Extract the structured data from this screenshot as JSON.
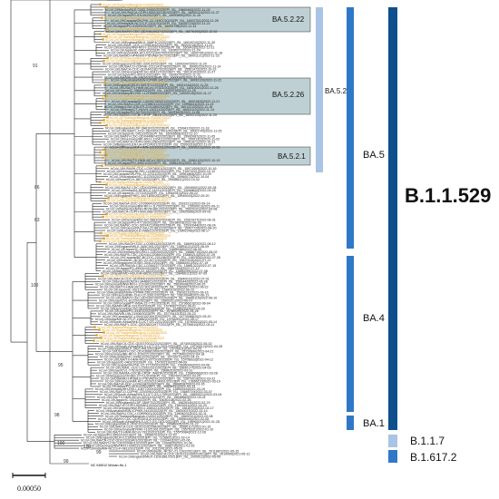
{
  "colors": {
    "branch": "#222222",
    "leaf_default": "#222222",
    "leaf_highlight": "#e0a020",
    "box_fill": "#88aaae",
    "bar_light": "#a9c4e4",
    "bar_mid": "#2f78c8",
    "bar_dark": "#0f4f8e"
  },
  "bootstrap_values": [
    "91",
    "86",
    "83",
    "100",
    "95",
    "98",
    "100",
    "100",
    "99",
    "99"
  ],
  "subclade_boxes": [
    {
      "label": "BA.5.2.22"
    },
    {
      "label": "BA.5.2.26"
    },
    {
      "label": "BA.5.2.1"
    }
  ],
  "lineage_bars": [
    {
      "label": "BA.5.2"
    },
    {
      "label": "BA.5"
    },
    {
      "label": "BA.4"
    },
    {
      "label": "BA.1"
    },
    {
      "label": "B.1.1.529"
    },
    {
      "label": "B.1.1.7"
    },
    {
      "label": "B.1.617.2"
    }
  ],
  "scale_bar": {
    "label": "0.00050"
  },
  "root_leaf": {
    "label": "NC 045512 Wuhan-Hu-1"
  },
  "leaf_labels": [
    {
      "text": "hCoV-19/Thailand/Bangkok-CU0097/2022",
      "hl": true
    },
    {
      "text": "hCoV-19/Thailand/Bangkok-CU0098/2022",
      "hl": true
    },
    {
      "text": "hCoV-19/Mexico/NLE-CIAD-29450/2022|EPI_ISL_15669460|2022-11-03",
      "hl": false
    },
    {
      "text": "hCoV-19/USA/CA-CDPH-500130218/2022|EPI_ISL_16000115|2022-11-27",
      "hl": false
    },
    {
      "text": "hCoV-19/Japan/PG-51140/2022|EPI_ISL_16093840|2022-11-15",
      "hl": false
    },
    {
      "text": "hCoV-19/Thailand/Bangkok-CU0106/2022",
      "hl": true
    },
    {
      "text": "hCoV-19/Canada/ON-PHL-22-24907/2022|EPI_ISL_16007321|2022-11-28",
      "hl": false
    },
    {
      "text": "hCoV-19/India/MH-NCCS-P-2201/2022|EPI_ISL_16093715|2022-11-22",
      "hl": false
    },
    {
      "text": "hCoV-19/Japan/PG-51093/2022|EPI_ISL_16093796|2022-11-14",
      "hl": false
    },
    {
      "text": "hCoV-19/Thailand/Bangkok-CU0112/2022",
      "hl": true
    },
    {
      "text": "hCoV-19/USA/NY-CDC-QDX46190374/2022|EPI_ISL_16076400|2022-12-02",
      "hl": false
    },
    {
      "text": "hCoV-19/Thailand/Bangkok-CU0085/2022",
      "hl": true
    },
    {
      "text": "hCoV-19/Thailand/Bangkok-CU0091/2022",
      "hl": true
    },
    {
      "text": "hCoV-19/Thailand/Bangkok-CU0093/2022",
      "hl": true
    },
    {
      "text": "hCoV-19/England/MILK-3A8F4C2/2022|EPI_ISL_16019210|2022-11-30",
      "hl": false
    },
    {
      "text": "hCoV-19/USA/IL-CDC-LC0981642/2022|EPI_ISL_16003218|2022-11-22",
      "hl": false
    },
    {
      "text": "hCoV-19/Germany/NW-RKI-I-1231027/2022|EPI_ISL_16094182|2022-11-21",
      "hl": false
    },
    {
      "text": "hCoV-19/Japan/IC-0952/2022|EPI_ISL_16093712|2022-11-24",
      "hl": false
    },
    {
      "text": "hCoV-19/France/ARA-HCL022123417001/2022|EPI_ISL_16007451|2022-11-18",
      "hl": false
    },
    {
      "text": "hCoV-19/USA/MD-HP40900-PIDVAEF2K7/2022|EPI_ISL_16001121|2022-11-23",
      "hl": false
    },
    {
      "text": "hCoV-19/Thailand/Bangkok-CU0109/2022",
      "hl": true
    },
    {
      "text": "hCoV-19/Thailand/Bangkok-CU0111/2022",
      "hl": true
    },
    {
      "text": "hCoV-19/Singapore/ODSEI-33019/2022|EPI_ISL_16003347|2022-11-20",
      "hl": false
    },
    {
      "text": "hCoV-19/USA/CO-CDPHE-2211141278/2022|EPI_ISL_16060220|2022-11-14",
      "hl": false
    },
    {
      "text": "hCoV-19/USA/CA-CDC-QDX44118273/2022|EPI_ISL_15561472|2022-10-22",
      "hl": false
    },
    {
      "text": "hCoV-19/Denmark/DCGC-604117/2022|EPI_ISL_16019102|2022-11-27",
      "hl": false
    },
    {
      "text": "hCoV-19/Japan/PG-50911/2022|EPI_ISL_16093701|2022-11-12",
      "hl": false
    },
    {
      "text": "hCoV-19/USA/WA-UW-24816/2022|EPI_ISL_16000931|2022-11-24",
      "hl": false
    },
    {
      "text": "hCoV-19/Australia/NSW-ICPMR-34211/2022|EPI_ISL_16093120|2022-11-22",
      "hl": false
    },
    {
      "text": "hCoV-19/Thailand/Bangkok-CU0089/2022",
      "hl": true
    },
    {
      "text": "hCoV-19/England/QEUH-3A97E11/2022|EPI_ISL_16001244|2022-11-29",
      "hl": false
    },
    {
      "text": "hCoV-19/USA/TX-HMH-MCoV-97302/2022|EPI_ISL_16010021|2022-11-26",
      "hl": false
    },
    {
      "text": "hCoV-19/Japan/IC-0968/2022|EPI_ISL_16093755|2022-11-25",
      "hl": false
    },
    {
      "text": "hCoV-19/Germany/BY-RKI-I-1219980/2022|EPI_ISL_16009128|2022-11-17",
      "hl": false
    },
    {
      "text": "hCoV-19/Thailand/Bangkok-CU0095/2022",
      "hl": true
    },
    {
      "text": "hCoV-19/Thailand/Bangkok-CU0103/2022",
      "hl": true
    },
    {
      "text": "hCoV-19/Canada/QC-L00492190001/2022|EPI_ISL_16001820|2022-11-21",
      "hl": false
    },
    {
      "text": "hCoV-19/USA/NJ-CDC-LC0980122/2022|EPI_ISL_15998411|2022-11-19",
      "hl": false
    },
    {
      "text": "hCoV-19/Italy/LOM-IZSLER-2231180/2022|EPI_ISL_16012212|2022-11-16",
      "hl": false
    },
    {
      "text": "hCoV-19/Spain/CT-HUVH-130211/2022|EPI_ISL_16003112|2022-11-14",
      "hl": false
    },
    {
      "text": "hCoV-19/Japan/PG-50700/2022|EPI_ISL_16093604|2022-11-08",
      "hl": false
    },
    {
      "text": "hCoV-19/USA/MA-CDCBI-CRSP_AB33L/2022|EPI_ISL_16002115|2022-11-20",
      "hl": false
    },
    {
      "text": "hCoV-19/Thailand/Bangkok-CU0087/2022",
      "hl": true
    },
    {
      "text": "hCoV-19/Thailand/Bangkok-CU0090/2022",
      "hl": true
    },
    {
      "text": "hCoV-19/Thailand/Bangkok-CU0100/2022",
      "hl": true
    },
    {
      "text": "hCoV-19/Thailand/Bangkok-CU0104/2022",
      "hl": true
    },
    {
      "text": "hCoV-19/England/ALDP-3A81F02/2022|EPI_ISL_15994120|2022-11-18",
      "hl": false
    },
    {
      "text": "hCoV-19/USA/FL-CDC-QDX45117001/2022|EPI_ISL_16001742|2022-11-25",
      "hl": false
    },
    {
      "text": "hCoV-19/Japan/IC-0911/2022|EPI_ISL_16093668|2022-11-10",
      "hl": false
    },
    {
      "text": "hCoV-19/USA/NY-CDC-QDX44987412/2022|EPI_ISL_15992087|2022-11-05",
      "hl": false
    },
    {
      "text": "hCoV-19/Germany/HE-RKI-I-1204112/2022|EPI_ISL_15991322|2022-11-02",
      "hl": false
    },
    {
      "text": "hCoV-19/USA/CA-CDPH-500120833/2022|EPI_ISL_15991871|2022-10-31",
      "hl": false
    },
    {
      "text": "hCoV-19/Belgium/UZA-UA-87224921/2022|EPI_ISL_15993318|2022-11-07",
      "hl": false
    },
    {
      "text": "hCoV-19/France/IDF-HMN-122100311/2022|EPI_ISL_15992211|2022-10-28",
      "hl": false
    },
    {
      "text": "hCoV-19/Thailand/Bangkok-CU0082/2022",
      "hl": true
    },
    {
      "text": "hCoV-19/Thailand/Bangkok-CU0083/2022",
      "hl": true
    },
    {
      "text": "hCoV-19/Thailand/Bangkok-CU0084/2022",
      "hl": true
    },
    {
      "text": "hCoV-19/Thailand/Bangkok-CU0086/2022",
      "hl": true
    },
    {
      "text": "hCoV-19/USA/TX-HMH-MCoV-95211/2022|EPI_ISL_15981120|2022-10-19",
      "hl": false
    },
    {
      "text": "hCoV-19/Japan/PG-49921/2022|EPI_ISL_15982341|2022-10-20",
      "hl": false
    },
    {
      "text": "hCoV-19/Thailand/Bangkok-CU0079/2022",
      "hl": true
    },
    {
      "text": "hCoV-19/USA/MI-CDC-LC0978001/2022|EPI_ISL_15971009|2022-10-16",
      "hl": false
    },
    {
      "text": "hCoV-19/Germany/NI-RKI-I-1188332/2022|EPI_ISL_15970221|2022-10-12",
      "hl": false
    },
    {
      "text": "hCoV-19/Canada/ON-PHL-22-22311/2022|EPI_ISL_15961884|2022-10-09",
      "hl": false
    },
    {
      "text": "hCoV-19/Australia/VIC-112203/2022|EPI_ISL_15960072|2022-10-04",
      "hl": false
    },
    {
      "text": "hCoV-19/Israel/CVL-88712/2022|EPI_ISL_15958811|2022-10-02",
      "hl": false
    },
    {
      "text": "hCoV-19/Thailand/Bangkok-CU0075/2022",
      "hl": true
    },
    {
      "text": "hCoV-19/Thailand/Bangkok-CU0077/2022",
      "hl": true
    },
    {
      "text": "hCoV-19/USA/AZ-CDC-QDX43399102/2022|EPI_ISL_15949001|2022-09-28",
      "hl": false
    },
    {
      "text": "hCoV-19/India/KA-NCBS-Z-14221/2022|EPI_ISL_15948820|2022-09-25",
      "hl": false
    },
    {
      "text": "hCoV-19/Japan/IC-0772/2022|EPI_ISL_15944310|2022-09-22",
      "hl": false
    },
    {
      "text": "hCoV-19/England/PHEC-3A71B30/2022|EPI_ISL_15940043|2022-09-20",
      "hl": false
    },
    {
      "text": "hCoV-19/Thailand/Bangkok-CU0071/2022",
      "hl": true
    },
    {
      "text": "hCoV-19/Thailand/Bangkok-CU0073/2022",
      "hl": true
    },
    {
      "text": "hCoV-19/USA/GA-CDC-LC0966410/2022|EPI_ISL_15932211|2022-09-14",
      "hl": false
    },
    {
      "text": "hCoV-19/Germany/BW-RKI-I-1170022/2022|EPI_ISL_15930013|2022-09-11",
      "hl": false
    },
    {
      "text": "hCoV-19/Netherlands/NH-RIVM-88120/2022|EPI_ISL_15929101|2022-09-08",
      "hl": false
    },
    {
      "text": "hCoV-19/USA/CA-CDPH-500108873/2022|EPI_ISL_15925566|2022-09-05",
      "hl": false
    },
    {
      "text": "hCoV-19/Thailand/Bangkok-CU0068/2022",
      "hl": true
    },
    {
      "text": "hCoV-19/Thailand/Bangkok-CU0069/2022",
      "hl": true
    },
    {
      "text": "hCoV-19/Denmark/DCGC-588102/2022|EPI_ISL_15921877|2022-08-31",
      "hl": false
    },
    {
      "text": "hCoV-19/Japan/PG-47710/2022|EPI_ISL_15918003|2022-08-28",
      "hl": false
    },
    {
      "text": "hCoV-19/USA/NC-CDC-QDX42110982/2022|EPI_ISL_15910044|2022-08-24",
      "hl": false
    },
    {
      "text": "hCoV-19/France/PAC-IHU-22-8812/2022|EPI_ISL_15907720|2022-08-20",
      "hl": false
    },
    {
      "text": "hCoV-19/Australia/QLD-0988122/2022|EPI_ISL_15902248|2022-08-17",
      "hl": false
    },
    {
      "text": "hCoV-19/Thailand/Bangkok-CU0064/2022",
      "hl": true
    },
    {
      "text": "hCoV-19/Thailand/Bangkok-CU0065/2022",
      "hl": true
    },
    {
      "text": "hCoV-19/Thailand/Bangkok-CU0066/2022",
      "hl": true
    },
    {
      "text": "hCoV-19/Thailand/Bangkok-CU0067/2022",
      "hl": true
    },
    {
      "text": "hCoV-19/USA/OH-CDC-LC0951120/2022|EPI_ISL_15899310|2022-08-12",
      "hl": false
    },
    {
      "text": "hCoV-19/England/MILK-3A5C901/2022|EPI_ISL_15894121|2022-08-09",
      "hl": false
    },
    {
      "text": "hCoV-19/Japan/IC-0644/2022|EPI_ISL_15890088|2022-08-05",
      "hl": false
    },
    {
      "text": "hCoV-19/Germany/SN-RKI-I-1151002/2022|EPI_ISL_15886710|2022-08-02",
      "hl": false
    },
    {
      "text": "hCoV-19/USA/PA-CDC-QDX41122089/2022|EPI_ISL_15880214|2022-07-29",
      "hl": false
    },
    {
      "text": "hCoV-19/Canada/BC-BCCDC-221198/2022|EPI_ISL_15876032|2022-07-26",
      "hl": false
    },
    {
      "text": "hCoV-19/India/DL-NCDC-22-4471/2022|EPI_ISL_15870119|2022-07-22",
      "hl": false
    },
    {
      "text": "hCoV-19/Singapore/ODSEI-30412/2022|EPI_ISL_15866001|2022-07-19",
      "hl": false
    },
    {
      "text": "hCoV-19/USA/VA-CDC-LC0942277/2022|EPI_ISL_15861322|2022-07-15",
      "hl": false
    },
    {
      "text": "hCoV-19/Japan/PG-45520/2022|EPI_ISL_15857444|2022-07-12",
      "hl": false
    },
    {
      "text": "hCoV-19/Italy/VEN-IZSVe-22-1822/2022|EPI_ISL_15850099|2022-07-08",
      "hl": false
    },
    {
      "text": "hCoV-19/Spain/MD-HGUGM-88201/2022|EPI_ISL_15846611|2022-07-05",
      "hl": false
    },
    {
      "text": "hCoV-19/Thailand/Bangkok-CU0061/2022",
      "hl": true
    },
    {
      "text": "hCoV-19/USA/CA-CDC-QDX40019320/2022|EPI_ISL_15840012|2022-07-01",
      "hl": false
    },
    {
      "text": "hCoV-19/England/QEUH-3A4B811/2022|EPI_ISL_15834420|2022-06-28",
      "hl": false
    },
    {
      "text": "hCoV-19/Germany/NW-RKI-I-1131901/2022|EPI_ISL_15830008|2022-06-25",
      "hl": false
    },
    {
      "text": "hCoV-19/USA/TX-HMH-MCoV-90114/2022|EPI_ISL_15826677|2022-06-22",
      "hl": false
    },
    {
      "text": "hCoV-19/Japan/IC-0521/2022|EPI_ISL_15820102|2022-06-19",
      "hl": false
    },
    {
      "text": "hCoV-19/Australia/NSW-ICPMR-29812/2022|EPI_ISL_15816231|2022-06-16",
      "hl": false
    },
    {
      "text": "hCoV-19/France/BRE-CHU-22-3301/2022|EPI_ISL_15810044|2022-06-13",
      "hl": false
    },
    {
      "text": "hCoV-19/USA/NY-CDC-QDX39210022/2022|EPI_ISL_15806119|2022-06-10",
      "hl": false
    },
    {
      "text": "hCoV-19/Israel/CVL-81220/2022|EPI_ISL_15800321|2022-06-07",
      "hl": false
    },
    {
      "text": "hCoV-19/Portugal/PT-INSA-22-7711/2022|EPI_ISL_15796610|2022-06-04",
      "hl": false
    },
    {
      "text": "hCoV-19/USA/MN-MDH-33120/2022|EPI_ISL_15790877|2022-06-01",
      "hl": false
    },
    {
      "text": "hCoV-19/Denmark/DCGC-561002/2022|EPI_ISL_15786220|2022-05-29",
      "hl": false
    },
    {
      "text": "hCoV-19/Japan/PG-43301/2022|EPI_ISL_15780099|2022-05-26",
      "hl": false
    },
    {
      "text": "hCoV-19/USA/WA-UW-21908/2022|EPI_ISL_15776412|2022-05-23",
      "hl": false
    },
    {
      "text": "hCoV-19/Canada/QC-L00441021001/2022|EPI_ISL_15770088|2022-05-20",
      "hl": false
    },
    {
      "text": "hCoV-19/India/MH-NCCS-P-1988/2022|EPI_ISL_15766301|2022-05-17",
      "hl": false
    },
    {
      "text": "hCoV-19/South Africa/NHLS-UCT-GS-2211/2022|EPI_ISL_15760022|2022-05-14",
      "hl": false
    },
    {
      "text": "hCoV-19/USA/FL-CDC-QDX38211977/2022|EPI_ISL_15756610|2022-05-11",
      "hl": false
    },
    {
      "text": "hCoV-19/Thailand/Bangkok-CU0041/2022",
      "hl": true
    },
    {
      "text": "hCoV-19/Thailand/Bangkok-CU0043/2022",
      "hl": true
    },
    {
      "text": "hCoV-19/Thailand/Bangkok-CU0045/2022",
      "hl": true
    },
    {
      "text": "hCoV-19/Thailand/Bangkok-CU0046/2022",
      "hl": true
    },
    {
      "text": "hCoV-19/Thailand/Bangkok-CU0048/2022",
      "hl": true
    },
    {
      "text": "hCoV-19/Thailand/Bangkok-CU0050/2022",
      "hl": true
    },
    {
      "text": "hCoV-19/USA/CA-CDC-QDX37001122/2022|EPI_ISL_15740033|2022-05-02",
      "hl": false
    },
    {
      "text": "hCoV-19/South Africa/NHLS-UCT-GS-2011/2022|EPI_ISL_15730012|2022-04-28",
      "hl": false
    },
    {
      "text": "hCoV-19/England/MILK-3A2C441/2022|EPI_ISL_15726611|2022-04-25",
      "hl": false
    },
    {
      "text": "hCoV-19/USA/NY-CDC-QDX36881009/2022|EPI_ISL_15720890|2022-04-21",
      "hl": false
    },
    {
      "text": "hCoV-19/Germany/BE-RKI-I-1100221/2022|EPI_ISL_15716402|2022-04-18",
      "hl": false
    },
    {
      "text": "hCoV-19/Australia/VIC-099812/2022|EPI_ISL_15710071|2022-04-15",
      "hl": false
    },
    {
      "text": "hCoV-19/USA/TX-HMH-MCoV-87720/2022|EPI_ISL_15706633|2022-04-12",
      "hl": false
    },
    {
      "text": "hCoV-19/Japan/IC-0402/2022|EPI_ISL_15700219|2022-04-09",
      "hl": false
    },
    {
      "text": "hCoV-19/Canada/ON-PHL-22-17720/2022|EPI_ISL_15696044|2022-04-06",
      "hl": false
    },
    {
      "text": "hCoV-19/USA/IL-CDC-LC0922331/2022|EPI_ISL_15690177|2022-04-03",
      "hl": false
    },
    {
      "text": "hCoV-19/Israel/CVL-77610/2022|EPI_ISL_15686310|2022-03-31",
      "hl": false
    },
    {
      "text": "hCoV-19/USA/MA-CDCBI-CRSP_AA91K/2022|EPI_ISL_15680066|2022-03-28",
      "hl": false
    },
    {
      "text": "hCoV-19/Singapore/ODSEI-27711/2022|EPI_ISL_15676221|2022-03-25",
      "hl": false
    },
    {
      "text": "hCoV-19/USA/MD-HP38812-PIDVAD1K2/2022|EPI_ISL_15670019|2022-03-22",
      "hl": false
    },
    {
      "text": "hCoV-19/France/ARA-HCL022021104001/2022|EPI_ISL_15666110|2022-03-19",
      "hl": false
    },
    {
      "text": "hCoV-19/USA/GA-CDC-LC0911872/2022|EPI_ISL_15660287|2022-03-16",
      "hl": false
    },
    {
      "text": "hCoV-19/Japan/PG-40112/2022|EPI_ISL_15656331|2022-03-13",
      "hl": false
    },
    {
      "text": "hCoV-19/Germany/HH-RKI-I-1087720/2022|EPI_ISL_15650044|2022-03-10",
      "hl": false
    },
    {
      "text": "hCoV-19/USA/CO-CDPHE-2203091102/2022|EPI_ISL_15646719|2022-03-07",
      "hl": false
    },
    {
      "text": "hCoV-19/South Africa/NHLS-UCT-GS-1799/2022|EPI_ISL_15640021|2022-03-04",
      "hl": false
    },
    {
      "text": "hCoV-19/USA/TX-HMH-MCoV-82011/2022|EPI_ISL_15636662|2022-03-01",
      "hl": false
    },
    {
      "text": "hCoV-19/Japan/IC-0311/2022|EPI_ISL_15630118|2022-02-26",
      "hl": false
    },
    {
      "text": "hCoV-19/England/ALDP-3A0F112/2022|EPI_ISL_15626340|2022-02-23",
      "hl": false
    },
    {
      "text": "hCoV-19/USA/CA-CDPH-500081120/2022|EPI_ISL_15620011|2022-02-20",
      "hl": false
    },
    {
      "text": "hCoV-19/Germany/NW-RKI-I-1060221/2022|EPI_ISL_15616702|2022-02-17",
      "hl": false
    },
    {
      "text": "hCoV-19/Australia/NSW-ICPMR-24410/2022|EPI_ISL_15610037|2022-02-14",
      "hl": false
    },
    {
      "text": "hCoV-19/USA/NJ-CDC-LC0899021/2022|EPI_ISL_15606231|2022-02-11",
      "hl": false
    },
    {
      "text": "hCoV-19/Thailand/Bangkok-CU0021/2022|EPI_ISL_15600101|2022-02-08",
      "hl": false
    },
    {
      "text": "hCoV-19/USA/NY-CDC-QDX33011210/2022|EPI_ISL_15596440|2022-02-05",
      "hl": false
    },
    {
      "text": "hCoV-19/South Africa/NHLS-UCT-GS-1511/2022|EPI_ISL_15590021|2022-01-28",
      "hl": false
    },
    {
      "text": "hCoV-19/England/MILK-2F9C311/2022|EPI_ISL_15586002|2022-01-22",
      "hl": false
    },
    {
      "text": "hCoV-19/USA/CA-CDC-QDX31102298/2022|EPI_ISL_15580117|2022-01-15",
      "hl": false
    },
    {
      "text": "hCoV-19/Germany/BY-RKI-I-1021001/2022|EPI_ISL_15576331|2022-01-10",
      "hl": false
    },
    {
      "text": "hCoV-19/USA/TX-HMH-MCoV-78120/2021|EPI_ISL_15570084|2021-12-28",
      "hl": false
    },
    {
      "text": "hCoV-19/Japan/PG-35522/2021|EPI_ISL_15566701|2021-12-20",
      "hl": false
    },
    {
      "text": "hCoV-19/England/QEUH-1C3A551/2021|EPI_ISL_1158821|2021-02-14",
      "hl": false
    },
    {
      "text": "hCoV-19/USA/CA-CDC-QDX21033401/2021|EPI_ISL_1120441|2021-02-06",
      "hl": false
    },
    {
      "text": "hCoV-19/USA/NY-CDC-QDX20981102/2021|EPI_ISL_1099820|2021-01-30",
      "hl": false
    },
    {
      "text": "hCoV-19/Germany/NW-RKI-I-0442311/2021|EPI_ISL_1088710|2021-01-25",
      "hl": false
    },
    {
      "text": "hCoV-19/India/MH-NCCS-P-0812/2021|EPI_ISL_2012241|2021-05-20",
      "hl": false
    },
    {
      "text": "hCoV-19/India/DL-NCDC-21-1102/2021|EPI_ISL_2011887|2021-05-15",
      "hl": false
    },
    {
      "text": "hCoV-19/USA/CA-CDC-QDX23119902/2021|EPI_ISL_2010099|2021-05-12",
      "hl": false
    },
    {
      "text": "hCoV-19/England/MILK-1D2E881/2021|EPI_ISL_2009012|2021-05-09",
      "hl": false
    }
  ]
}
